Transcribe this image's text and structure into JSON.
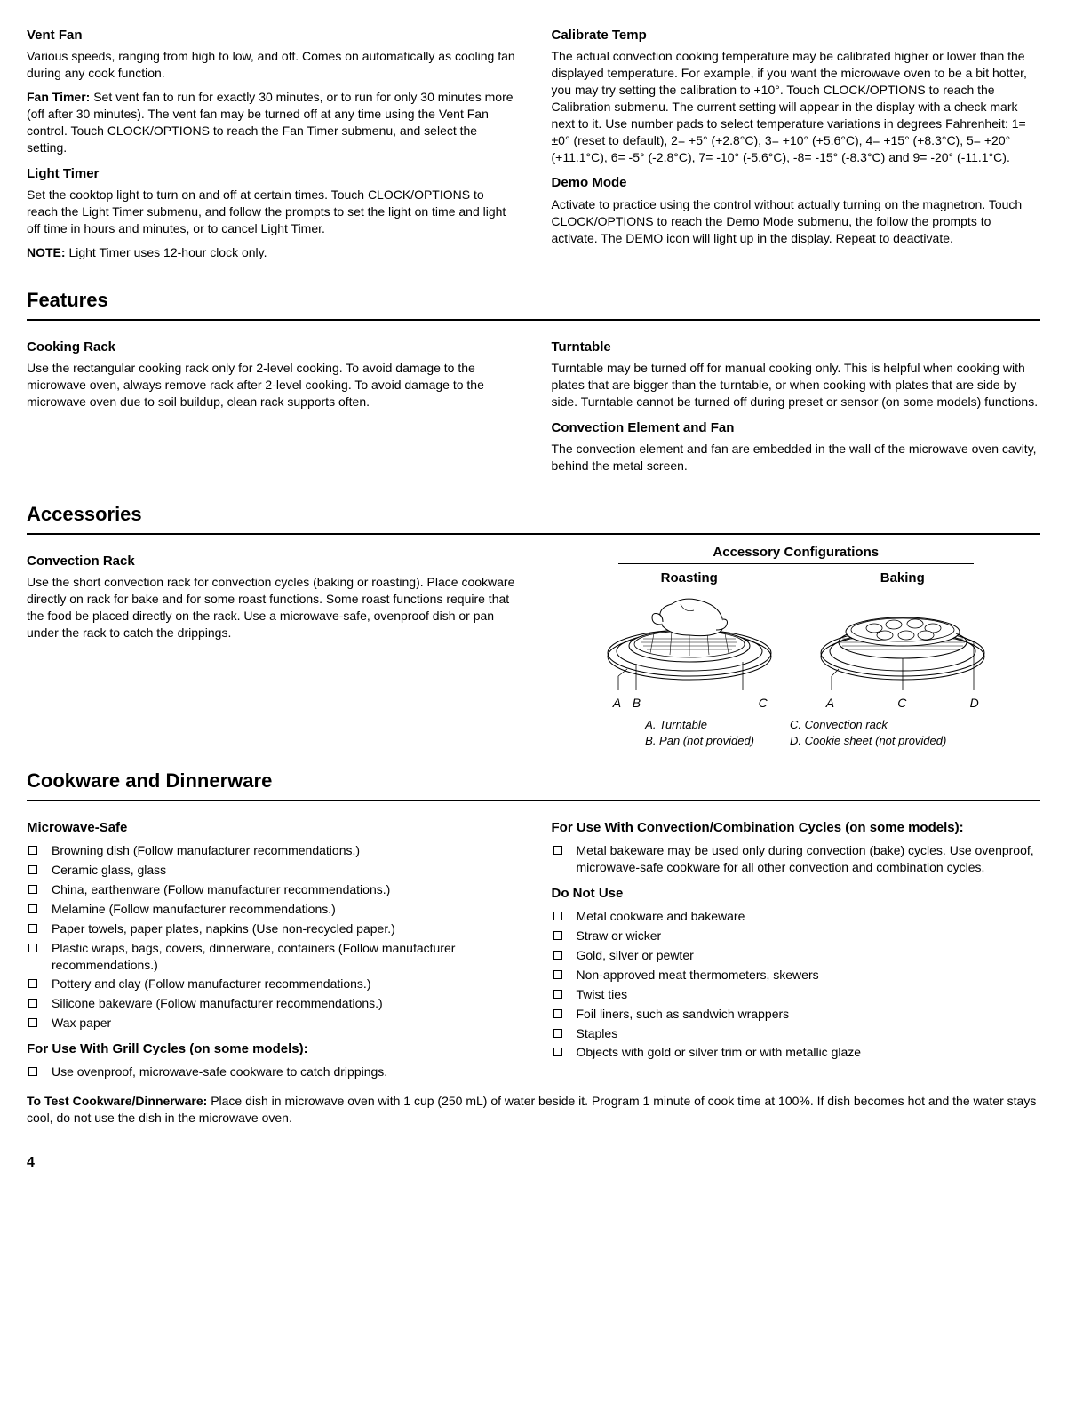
{
  "top": {
    "left": {
      "ventFan": {
        "heading": "Vent Fan",
        "p1": "Various speeds, ranging from high to low, and off. Comes on automatically as cooling fan during any cook function.",
        "fanTimerLabel": "Fan Timer:",
        "fanTimerBody": " Set vent fan to run for exactly 30 minutes, or to run for only 30 minutes more (off after 30 minutes). The vent fan may be turned off at any time using the Vent Fan control. Touch CLOCK/OPTIONS to reach the Fan Timer submenu, and select the setting."
      },
      "lightTimer": {
        "heading": "Light Timer",
        "p1": "Set the cooktop light to turn on and off at certain times. Touch CLOCK/OPTIONS to reach the Light Timer submenu, and follow the prompts to set the light on time and light off time in hours and minutes, or to cancel Light Timer.",
        "noteLabel": "NOTE:",
        "noteBody": " Light Timer uses 12-hour clock only."
      }
    },
    "right": {
      "calibrate": {
        "heading": "Calibrate Temp",
        "p1": "The actual convection cooking temperature may be calibrated higher or lower than the displayed temperature. For example, if you want the microwave oven to be a bit hotter, you may try setting the calibration to +10°. Touch CLOCK/OPTIONS to reach the Calibration submenu. The current setting will appear in the display with a check mark next to it. Use number pads to select temperature variations in degrees Fahrenheit: 1= ±0° (reset to default), 2= +5° (+2.8°C), 3= +10° (+5.6°C), 4= +15° (+8.3°C), 5= +20° (+11.1°C), 6= -5° (-2.8°C), 7= -10° (-5.6°C), -8= -15° (-8.3°C) and 9= -20° (-11.1°C)."
      },
      "demo": {
        "heading": "Demo Mode",
        "p1": "Activate to practice using the control without actually turning on the magnetron. Touch CLOCK/OPTIONS to reach the Demo Mode submenu, the follow the prompts to activate. The DEMO icon will light up in the display. Repeat to deactivate."
      }
    }
  },
  "features": {
    "title": "Features",
    "left": {
      "cookingRack": {
        "heading": "Cooking Rack",
        "p1": "Use the rectangular cooking rack only for 2-level cooking. To avoid damage to the microwave oven, always remove rack after 2-level cooking. To avoid damage to the microwave oven due to soil buildup, clean rack supports often."
      }
    },
    "right": {
      "turntable": {
        "heading": "Turntable",
        "p1": "Turntable may be turned off for manual cooking only. This is helpful when cooking with plates that are bigger than the turntable, or when cooking with plates that are side by side. Turntable cannot be turned off during preset or sensor (on some models) functions."
      },
      "convectionElem": {
        "heading": "Convection Element and Fan",
        "p1": "The convection element and fan are embedded in the wall of the microwave oven cavity, behind the metal screen."
      }
    }
  },
  "accessories": {
    "title": "Accessories",
    "left": {
      "convectionRack": {
        "heading": "Convection Rack",
        "p1": "Use the short convection rack for convection cycles (baking or roasting). Place cookware directly on rack for bake and for some roast functions. Some roast functions require that the food be placed directly on the rack. Use a microwave-safe, ovenproof dish or pan under the rack to catch the drippings."
      }
    },
    "right": {
      "title": "Accessory Configurations",
      "roasting": "Roasting",
      "baking": "Baking",
      "lettersRoast": [
        "A",
        "B",
        "C"
      ],
      "lettersBake": [
        "A",
        "C",
        "D"
      ],
      "legendA": "A. Turntable",
      "legendB": "B. Pan (not provided)",
      "legendC": "C. Convection rack",
      "legendD": "D. Cookie sheet (not provided)"
    }
  },
  "cookware": {
    "title": "Cookware and Dinnerware",
    "left": {
      "microwaveSafe": {
        "heading": "Microwave-Safe",
        "items": [
          "Browning dish (Follow manufacturer recommendations.)",
          "Ceramic glass, glass",
          "China, earthenware (Follow manufacturer recommendations.)",
          "Melamine (Follow manufacturer recommendations.)",
          "Paper towels, paper plates, napkins (Use non-recycled paper.)",
          "Plastic wraps, bags, covers, dinnerware, containers (Follow manufacturer recommendations.)",
          "Pottery and clay (Follow manufacturer recommendations.)",
          "Silicone bakeware (Follow manufacturer recommendations.)",
          "Wax paper"
        ]
      },
      "grill": {
        "heading": "For Use With Grill Cycles (on some models):",
        "items": [
          "Use ovenproof, microwave-safe cookware to catch drippings."
        ]
      }
    },
    "right": {
      "convection": {
        "heading": "For Use With Convection/Combination Cycles (on some models):",
        "items": [
          "Metal bakeware may be used only during convection (bake) cycles. Use ovenproof, microwave-safe cookware for all other convection and combination cycles."
        ]
      },
      "doNotUse": {
        "heading": "Do Not Use",
        "items": [
          "Metal cookware and bakeware",
          "Straw or wicker",
          "Gold, silver or pewter",
          "Non-approved meat thermometers, skewers",
          "Twist ties",
          "Foil liners, such as sandwich wrappers",
          "Staples",
          "Objects with gold or silver trim or with metallic glaze"
        ]
      }
    },
    "testLabel": "To Test Cookware/Dinnerware:",
    "testBody": " Place dish in microwave oven with 1 cup (250 mL) of water beside it. Program 1 minute of cook time at 100%. If dish becomes hot and the water stays cool, do not use the dish in the microwave oven."
  },
  "pageNumber": "4"
}
